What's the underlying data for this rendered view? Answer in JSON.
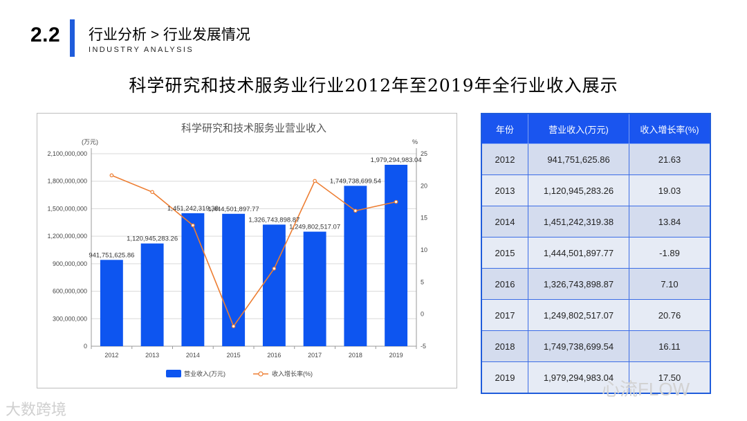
{
  "header": {
    "section_number": "2.2",
    "section_title": "行业分析 > 行业发展情况",
    "section_subtitle": "INDUSTRY ANALYSIS"
  },
  "page_title": "科学研究和技术服务业行业2012年至2019年全行业收入展示",
  "chart_data": {
    "type": "bar",
    "title": "科学研究和技术服务业营业收入",
    "categories": [
      "2012",
      "2013",
      "2014",
      "2015",
      "2016",
      "2017",
      "2018",
      "2019"
    ],
    "series": [
      {
        "name": "营业收入(万元)",
        "type": "bar",
        "axis": "left",
        "color": "#0d55f0",
        "values": [
          941751625.86,
          1120945283.26,
          1451242319.38,
          1444501897.77,
          1326743898.87,
          1249802517.07,
          1749738699.54,
          1979294983.04
        ],
        "labels": [
          "941,751,625.86",
          "1,120,945,283.26",
          "1,451,242,319.38",
          "1,444,501,897.77",
          "1,326,743,898.87",
          "1,249,802,517.07",
          "1,749,738,699.54",
          "1,979,294,983.04"
        ]
      },
      {
        "name": "收入增长率(%)",
        "type": "line",
        "axis": "right",
        "color": "#ed7d31",
        "values": [
          21.63,
          19.03,
          13.84,
          -1.89,
          7.1,
          20.76,
          16.11,
          17.5
        ]
      }
    ],
    "y_left": {
      "label": "(万元)",
      "min": 0,
      "max": 2100000000,
      "ticks": [
        0,
        300000000,
        600000000,
        900000000,
        1200000000,
        1500000000,
        1800000000,
        2100000000
      ],
      "tick_labels": [
        "0",
        "300,000,000",
        "600,000,000",
        "900,000,000",
        "1,200,000,000",
        "1,500,000,000",
        "1,800,000,000",
        "2,100,000,000"
      ]
    },
    "y_right": {
      "label": "%",
      "min": -5,
      "max": 25,
      "ticks": [
        -5,
        0,
        5,
        10,
        15,
        20,
        25
      ],
      "tick_labels": [
        "-5",
        "0",
        "5",
        "10",
        "15",
        "20",
        "25"
      ]
    },
    "legend_position": "bottom-center",
    "grid": true
  },
  "table": {
    "headers": [
      "年份",
      "营业收入(万元)",
      "收入增长率(%)"
    ],
    "rows": [
      [
        "2012",
        "941,751,625.86",
        "21.63"
      ],
      [
        "2013",
        "1,120,945,283.26",
        "19.03"
      ],
      [
        "2014",
        "1,451,242,319.38",
        "13.84"
      ],
      [
        "2015",
        "1,444,501,897.77",
        "-1.89"
      ],
      [
        "2016",
        "1,326,743,898.87",
        "7.10"
      ],
      [
        "2017",
        "1,249,802,517.07",
        "20.76"
      ],
      [
        "2018",
        "1,749,738,699.54",
        "16.11"
      ],
      [
        "2019",
        "1,979,294,983.04",
        "17.50"
      ]
    ]
  },
  "watermarks": {
    "left": "大数跨境",
    "right": "心流FLOW"
  }
}
